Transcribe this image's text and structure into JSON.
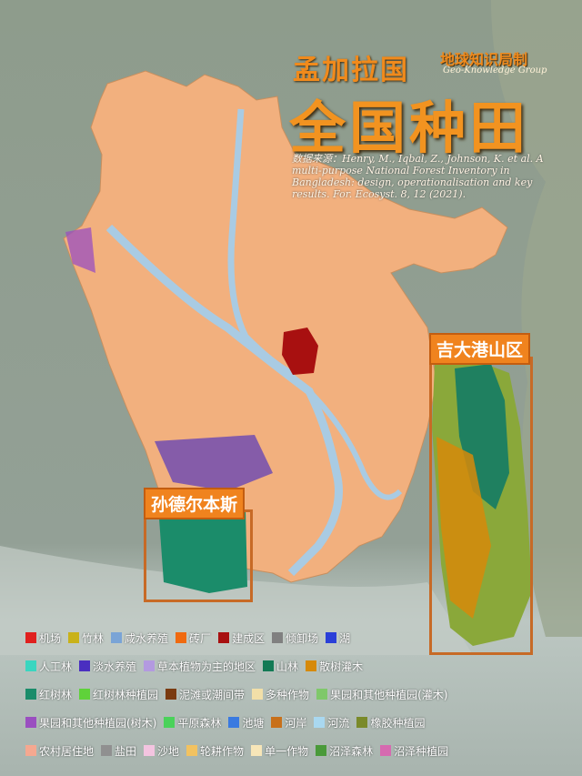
{
  "title": {
    "country": "孟加拉国",
    "main": "全国种田",
    "org_cn": "地球知识局制",
    "org_en": "Geo-Knowledge Group",
    "source": "数据来源：Henry, M., Iqbal, Z., Johnson, K. et al. A multi-purpose National Forest Inventory in Bangladesh: design, operationalisation and key results. For. Ecosyst. 8, 12 (2021)."
  },
  "regions": {
    "chittagong": "吉大港山区",
    "sundarbans": "孙德尔本斯"
  },
  "colors": {
    "land": "#f2b07e",
    "river": "#a9cbe3",
    "sea": "#c9d4cf",
    "title_orange": "#f29320",
    "frame": "#c76a26"
  },
  "legend": [
    [
      {
        "label": "机场",
        "color": "#e0201e"
      },
      {
        "label": "竹林",
        "color": "#c9b21a"
      },
      {
        "label": "咸水养殖",
        "color": "#7aa4d6"
      },
      {
        "label": "砖厂",
        "color": "#f06a10"
      },
      {
        "label": "建成区",
        "color": "#a81010"
      },
      {
        "label": "倾卸场",
        "color": "#808080"
      },
      {
        "label": "湖",
        "color": "#2a3fd8"
      }
    ],
    [
      {
        "label": "人工林",
        "color": "#3ad6c0"
      },
      {
        "label": "淡水养殖",
        "color": "#4a2fc0"
      },
      {
        "label": "草本植物为主的地区",
        "color": "#b39ae0"
      },
      {
        "label": "山林",
        "color": "#137a55"
      },
      {
        "label": "散树灌木",
        "color": "#d68a0a"
      }
    ],
    [
      {
        "label": "红树林",
        "color": "#1b8c6a"
      },
      {
        "label": "红树林种植园",
        "color": "#5fd23a"
      },
      {
        "label": "泥滩或潮间带",
        "color": "#7a3b10"
      },
      {
        "label": "多种作物",
        "color": "#f2dfa8"
      },
      {
        "label": "果园和其他种植园(灌木)",
        "color": "#7fc86a"
      }
    ],
    [
      {
        "label": "果园和其他种植园(树木)",
        "color": "#9a4fc0"
      },
      {
        "label": "平原森林",
        "color": "#4ad25a"
      },
      {
        "label": "池塘",
        "color": "#3a7ae0"
      },
      {
        "label": "河岸",
        "color": "#c8701a"
      },
      {
        "label": "河流",
        "color": "#a9d8f0"
      },
      {
        "label": "橡胶种植园",
        "color": "#7a8a2a"
      }
    ],
    [
      {
        "label": "农村居住地",
        "color": "#f5a890"
      },
      {
        "label": "盐田",
        "color": "#909090"
      },
      {
        "label": "沙地",
        "color": "#f3c4e0"
      },
      {
        "label": "轮耕作物",
        "color": "#f2c260"
      },
      {
        "label": "单一作物",
        "color": "#f7e6b8"
      },
      {
        "label": "沼泽森林",
        "color": "#4a9a3a"
      },
      {
        "label": "沼泽种植园",
        "color": "#d66ab0"
      }
    ]
  ]
}
